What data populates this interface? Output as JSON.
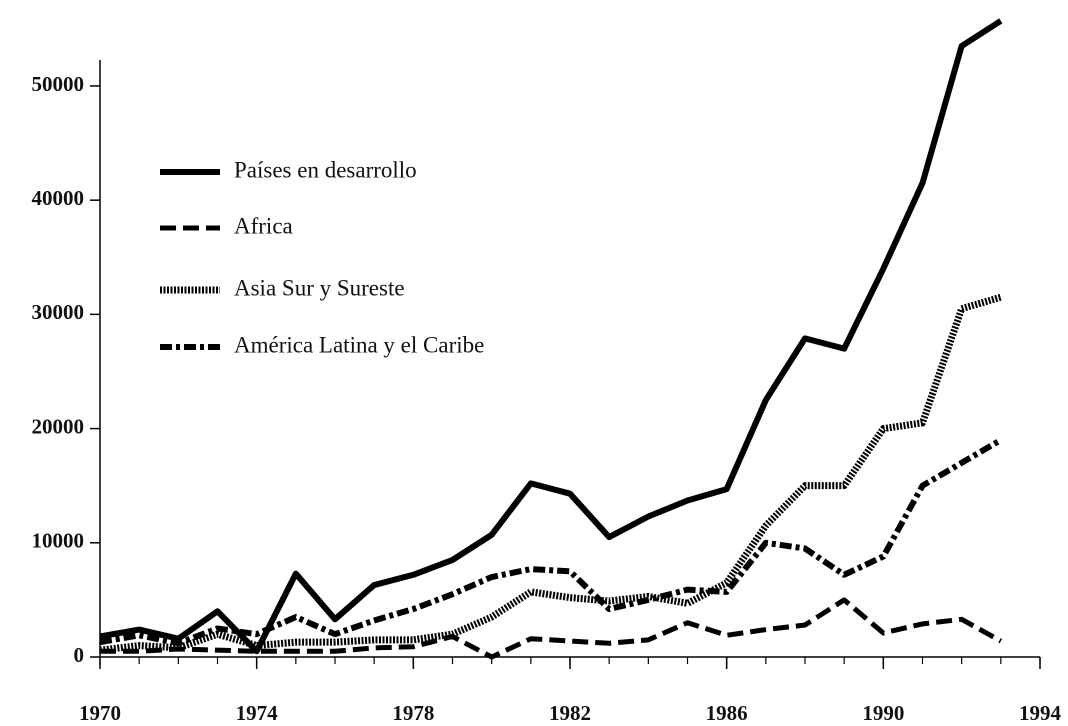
{
  "chart_data": {
    "type": "line",
    "x": [
      1970,
      1971,
      1972,
      1973,
      1974,
      1975,
      1976,
      1977,
      1978,
      1979,
      1980,
      1981,
      1982,
      1983,
      1984,
      1985,
      1986,
      1987,
      1988,
      1989,
      1990,
      1991,
      1992,
      1993
    ],
    "series": [
      {
        "name": "Países en desarrollo",
        "color": "#000000",
        "line_style": "solid",
        "values": [
          1800,
          2400,
          1600,
          4000,
          500,
          7300,
          3300,
          6300,
          7200,
          8500,
          10700,
          15200,
          14300,
          10500,
          12300,
          13700,
          14700,
          22500,
          27900,
          27000,
          34000,
          41500,
          53500,
          55700
        ]
      },
      {
        "name": "Africa",
        "color": "#000000",
        "line_style": "dashed",
        "values": [
          500,
          500,
          700,
          600,
          500,
          500,
          500,
          800,
          900,
          1800,
          0,
          1600,
          1400,
          1200,
          1500,
          3000,
          1900,
          2400,
          2800,
          5000,
          2100,
          2900,
          3300,
          1400
        ]
      },
      {
        "name": "Asia Sur y Sureste",
        "color": "#000000",
        "line_style": "dotted",
        "values": [
          600,
          1000,
          800,
          2000,
          1000,
          1300,
          1300,
          1500,
          1500,
          2000,
          3500,
          5700,
          5200,
          4900,
          5300,
          4700,
          6500,
          11500,
          15000,
          15000,
          20000,
          20500,
          30500,
          31500
        ]
      },
      {
        "name": "América Latina y el Caribe",
        "color": "#000000",
        "line_style": "dashdot",
        "values": [
          1300,
          1900,
          1200,
          2500,
          2000,
          3500,
          2000,
          3200,
          4200,
          5500,
          7000,
          7700,
          7500,
          4200,
          5000,
          5900,
          5700,
          10000,
          9500,
          7200,
          8800,
          15000,
          17000,
          19000
        ]
      }
    ],
    "xlim": [
      1970,
      1994
    ],
    "xticks": [
      1970,
      1974,
      1978,
      1982,
      1986,
      1990,
      1994
    ],
    "ylim": [
      0,
      57000
    ],
    "yticks": [
      0,
      10000,
      20000,
      30000,
      40000,
      50000
    ],
    "grid": false,
    "legend": "upper left"
  }
}
